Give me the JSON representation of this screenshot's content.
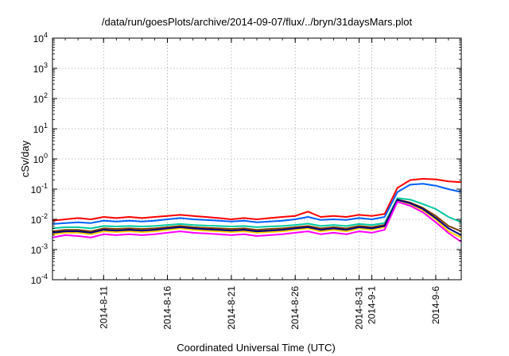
{
  "chart_data": {
    "type": "line",
    "title": "/data/run/goesPlots/archive/2014-09-07/flux/../bryn/31daysMars.plot",
    "xlabel": "Coordinated Universal Time (UTC)",
    "ylabel": "cSv/day",
    "y_scale": "log",
    "ylim": [
      0.0001,
      10000
    ],
    "xlim": [
      "2014-08-07",
      "2014-09-08"
    ],
    "grid": true,
    "y_ticks": [
      {
        "base": "10",
        "exp": "-4"
      },
      {
        "base": "10",
        "exp": "-3"
      },
      {
        "base": "10",
        "exp": "-2"
      },
      {
        "base": "10",
        "exp": "-1"
      },
      {
        "base": "10",
        "exp": "0"
      },
      {
        "base": "10",
        "exp": "1"
      },
      {
        "base": "10",
        "exp": "2"
      },
      {
        "base": "10",
        "exp": "3"
      },
      {
        "base": "10",
        "exp": "4"
      }
    ],
    "x_ticks": [
      {
        "date": "2014-08-11",
        "label": "2014-8-11"
      },
      {
        "date": "2014-08-16",
        "label": "2014-8-16"
      },
      {
        "date": "2014-08-21",
        "label": "2014-8-21"
      },
      {
        "date": "2014-08-26",
        "label": "2014-8-26"
      },
      {
        "date": "2014-08-31",
        "label": "2014-8-31"
      },
      {
        "date": "2014-09-01",
        "label": "2014-9-1"
      },
      {
        "date": "2014-09-06",
        "label": "2014-9-6"
      }
    ],
    "x": [
      "2014-08-07",
      "2014-08-08",
      "2014-08-09",
      "2014-08-10",
      "2014-08-11",
      "2014-08-12",
      "2014-08-13",
      "2014-08-14",
      "2014-08-15",
      "2014-08-16",
      "2014-08-17",
      "2014-08-18",
      "2014-08-19",
      "2014-08-20",
      "2014-08-21",
      "2014-08-22",
      "2014-08-23",
      "2014-08-24",
      "2014-08-25",
      "2014-08-26",
      "2014-08-27",
      "2014-08-28",
      "2014-08-29",
      "2014-08-30",
      "2014-08-31",
      "2014-09-01",
      "2014-09-02",
      "2014-09-03",
      "2014-09-04",
      "2014-09-05",
      "2014-09-06",
      "2014-09-07",
      "2014-09-08"
    ],
    "series": [
      {
        "color": "#ff0000",
        "values": [
          0.009,
          0.01,
          0.011,
          0.01,
          0.012,
          0.011,
          0.012,
          0.011,
          0.012,
          0.013,
          0.014,
          0.013,
          0.012,
          0.011,
          0.01,
          0.011,
          0.01,
          0.011,
          0.012,
          0.013,
          0.018,
          0.012,
          0.013,
          0.012,
          0.014,
          0.013,
          0.015,
          0.11,
          0.2,
          0.22,
          0.21,
          0.18,
          0.17
        ]
      },
      {
        "color": "#0060ff",
        "values": [
          0.007,
          0.0075,
          0.008,
          0.0075,
          0.009,
          0.0085,
          0.009,
          0.0085,
          0.009,
          0.01,
          0.011,
          0.01,
          0.0095,
          0.009,
          0.0085,
          0.009,
          0.008,
          0.0085,
          0.009,
          0.01,
          0.012,
          0.0095,
          0.01,
          0.0095,
          0.011,
          0.01,
          0.012,
          0.08,
          0.14,
          0.15,
          0.13,
          0.1,
          0.08
        ]
      },
      {
        "color": "#00c8a0",
        "values": [
          0.005,
          0.0055,
          0.0055,
          0.005,
          0.006,
          0.0058,
          0.006,
          0.0058,
          0.006,
          0.0065,
          0.007,
          0.0065,
          0.0062,
          0.006,
          0.0058,
          0.006,
          0.0055,
          0.0058,
          0.006,
          0.0065,
          0.0072,
          0.006,
          0.0065,
          0.006,
          0.007,
          0.0065,
          0.0075,
          0.05,
          0.045,
          0.032,
          0.022,
          0.012,
          0.008
        ]
      },
      {
        "color": "#804000",
        "values": [
          0.004,
          0.0045,
          0.0045,
          0.004,
          0.005,
          0.0048,
          0.005,
          0.0048,
          0.005,
          0.0055,
          0.006,
          0.0055,
          0.0052,
          0.005,
          0.0048,
          0.005,
          0.0045,
          0.0048,
          0.005,
          0.0055,
          0.006,
          0.005,
          0.0055,
          0.005,
          0.006,
          0.0055,
          0.0065,
          0.045,
          0.036,
          0.024,
          0.013,
          0.006,
          0.004
        ]
      },
      {
        "color": "#ffd000",
        "values": [
          0.0032,
          0.0036,
          0.0036,
          0.0032,
          0.004,
          0.0038,
          0.004,
          0.0038,
          0.004,
          0.0045,
          0.005,
          0.0045,
          0.0042,
          0.004,
          0.0038,
          0.004,
          0.0036,
          0.0038,
          0.004,
          0.0045,
          0.005,
          0.004,
          0.0045,
          0.004,
          0.005,
          0.0045,
          0.0055,
          0.042,
          0.032,
          0.02,
          0.01,
          0.004,
          0.0025
        ]
      },
      {
        "color": "#000080",
        "values": [
          0.0036,
          0.004,
          0.004,
          0.0036,
          0.0045,
          0.0042,
          0.0045,
          0.0042,
          0.0045,
          0.005,
          0.0055,
          0.005,
          0.0047,
          0.0045,
          0.0042,
          0.0045,
          0.004,
          0.0042,
          0.0045,
          0.005,
          0.0055,
          0.0045,
          0.005,
          0.0045,
          0.0055,
          0.005,
          0.006,
          0.044,
          0.034,
          0.022,
          0.011,
          0.005,
          0.003
        ]
      },
      {
        "color": "#ff00ff",
        "values": [
          0.0025,
          0.003,
          0.0028,
          0.0025,
          0.0032,
          0.003,
          0.0032,
          0.003,
          0.0032,
          0.0036,
          0.004,
          0.0036,
          0.0034,
          0.0032,
          0.003,
          0.0032,
          0.0028,
          0.003,
          0.0032,
          0.0036,
          0.004,
          0.0032,
          0.0036,
          0.0032,
          0.004,
          0.0036,
          0.0045,
          0.038,
          0.028,
          0.017,
          0.008,
          0.0035,
          0.0018
        ]
      }
    ]
  }
}
